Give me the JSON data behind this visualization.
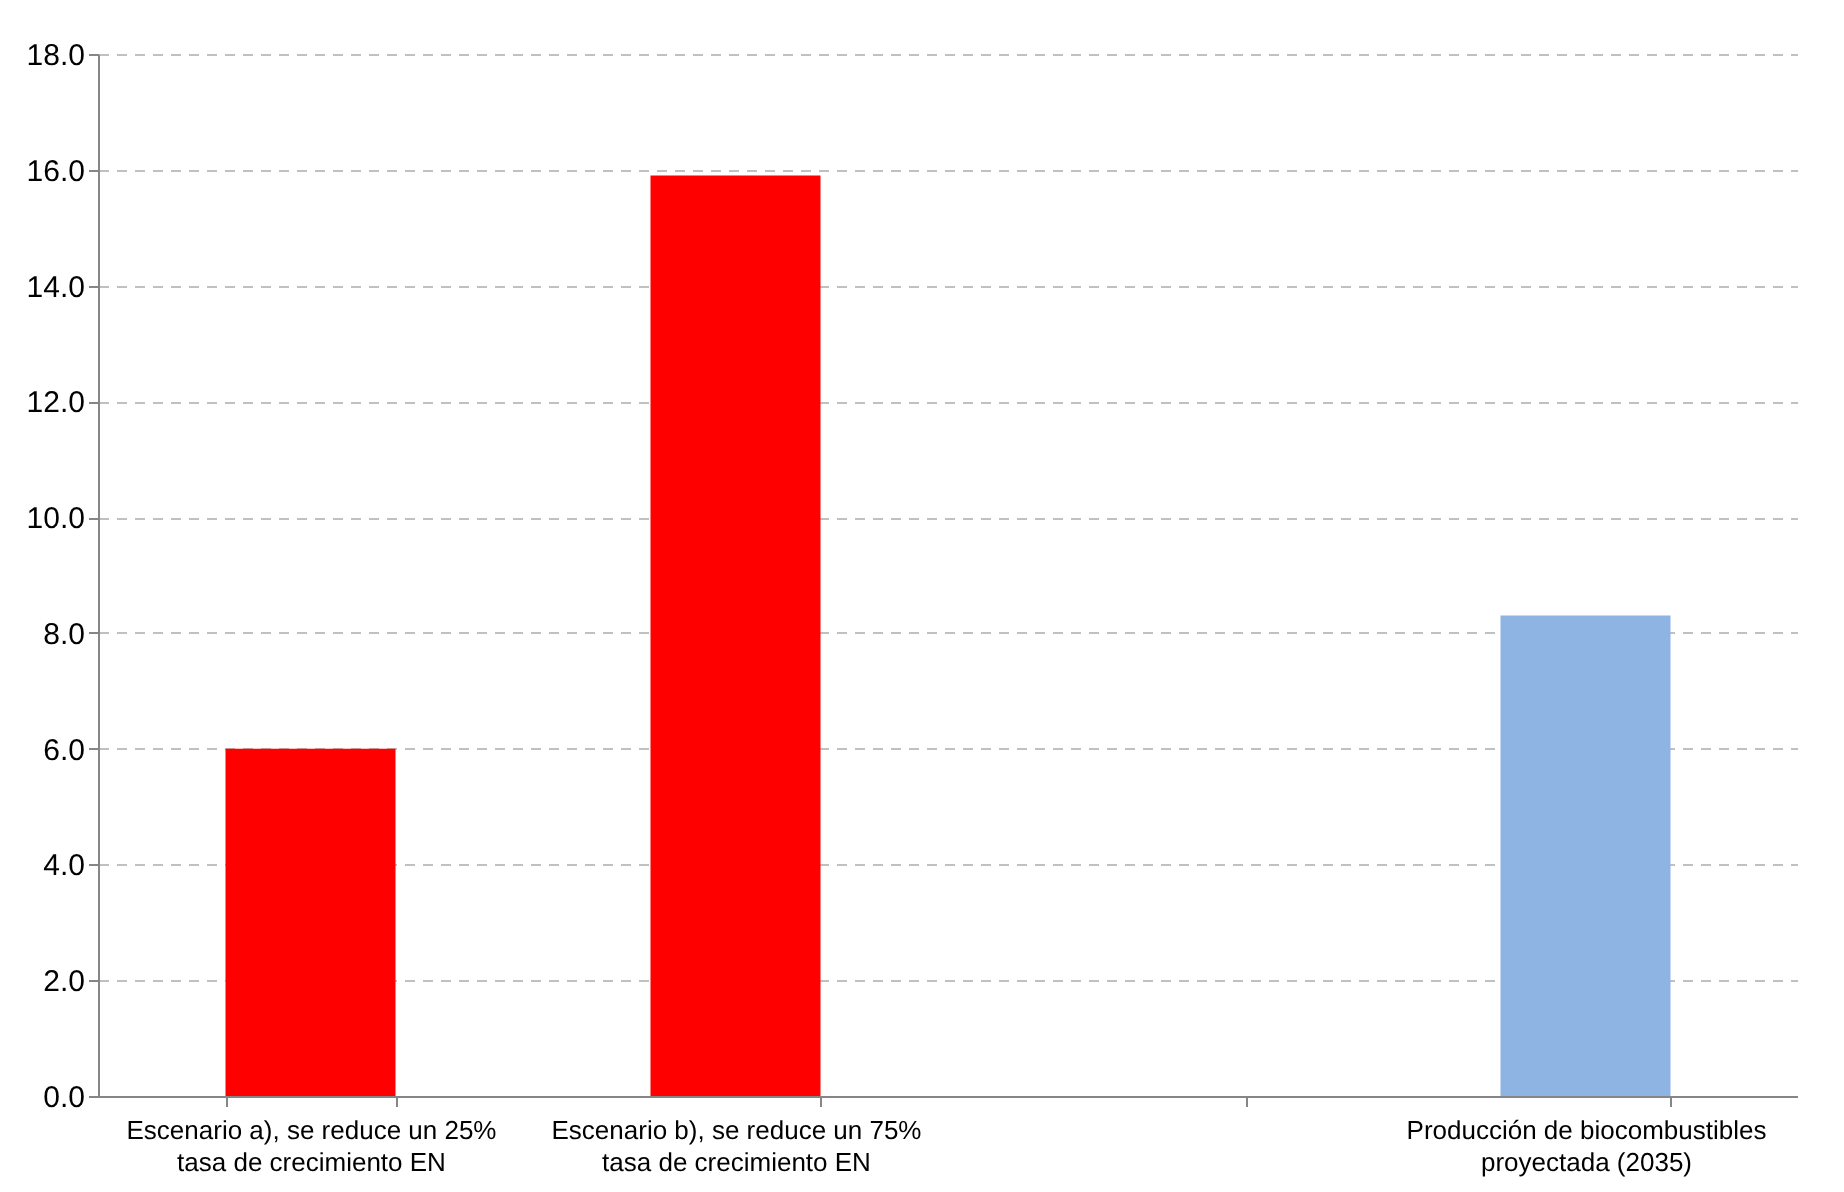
{
  "chart_data": {
    "type": "bar",
    "categories": [
      "Escenario a), se reduce un 25%\ntasa de crecimiento EN",
      "Escenario b), se reduce un 75%\ntasa de crecimiento EN",
      null,
      "Producción de biocombustibles\nproyectada (2035)"
    ],
    "values": [
      6.0,
      15.9,
      null,
      8.3
    ],
    "colors": [
      "#ff0000",
      "#ff0000",
      "#ff0000",
      "#8db4e2"
    ],
    "ylim": [
      0,
      18
    ],
    "yticks": [
      {
        "value": 0,
        "label": "0.0"
      },
      {
        "value": 2,
        "label": "2.0"
      },
      {
        "value": 4,
        "label": "4.0"
      },
      {
        "value": 6,
        "label": "6.0"
      },
      {
        "value": 8,
        "label": "8.0"
      },
      {
        "value": 10,
        "label": "10.0"
      },
      {
        "value": 12,
        "label": "12.0"
      },
      {
        "value": 14,
        "label": "14.0"
      },
      {
        "value": 16,
        "label": "16.0"
      },
      {
        "value": 18,
        "label": "18.0"
      }
    ],
    "grid": true
  }
}
